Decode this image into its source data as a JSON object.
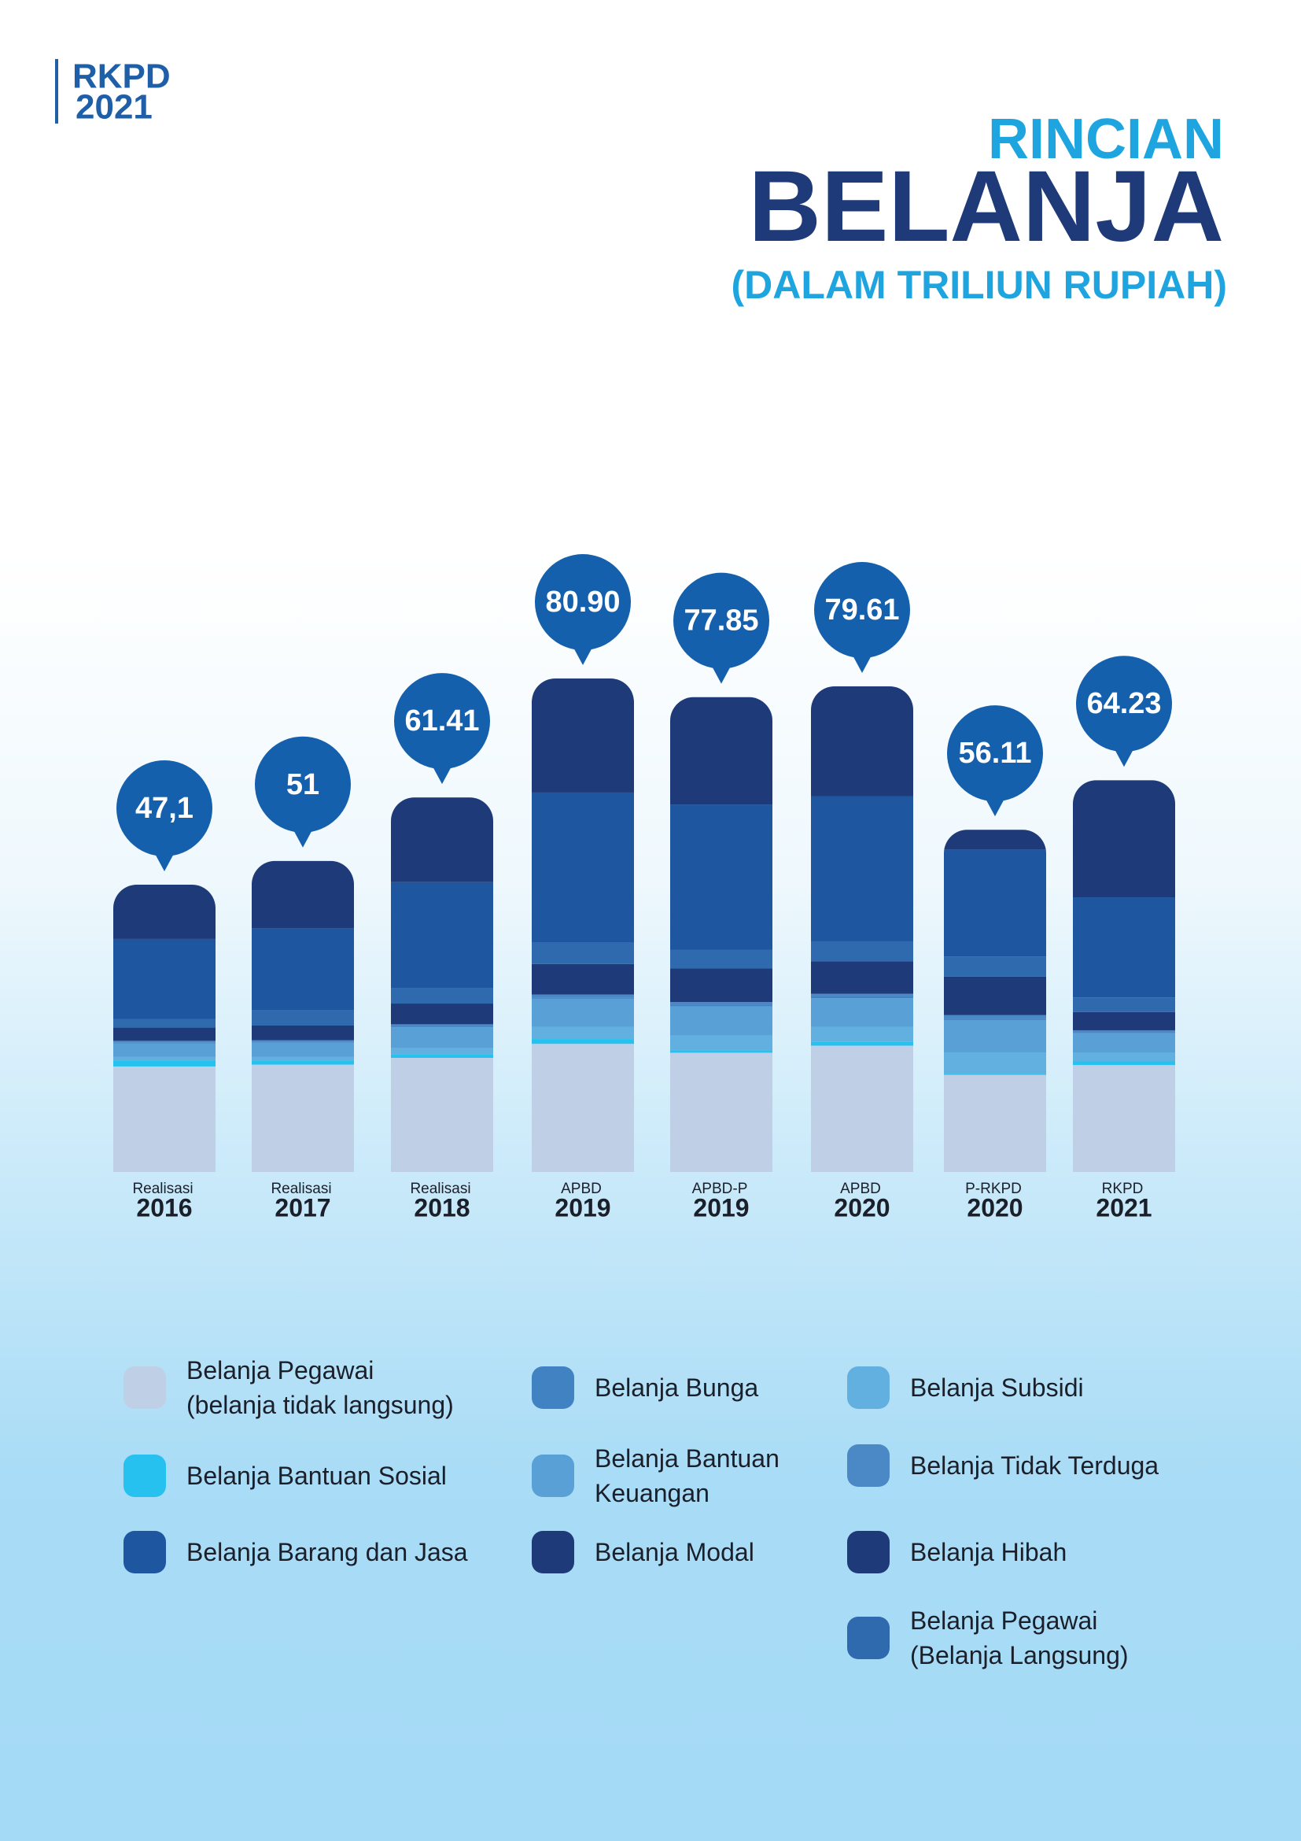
{
  "header": {
    "brand": "RKPD",
    "brand_year": "2021"
  },
  "chart_data": {
    "type": "stacked_bar",
    "title": "RINCIAN",
    "title_main": "BELANJA",
    "subtitle": "(DALAM TRILIUN RUPIAH)",
    "categories": [
      {
        "label": "Realisasi",
        "year": "2016"
      },
      {
        "label": "Realisasi",
        "year": "2017"
      },
      {
        "label": "Realisasi",
        "year": "2018"
      },
      {
        "label": "APBD",
        "year": "2019"
      },
      {
        "label": "APBD-P",
        "year": "2019"
      },
      {
        "label": "APBD",
        "year": "2020"
      },
      {
        "label": "P-RKPD",
        "year": "2020"
      },
      {
        "label": "RKPD",
        "year": "2021"
      }
    ],
    "totals": [
      47.1,
      51,
      61.41,
      80.9,
      77.85,
      79.61,
      56.11,
      64.23
    ],
    "total_labels": [
      "47,1",
      "51",
      "61.41",
      "80.90",
      "77.85",
      "79.61",
      "56.11",
      "64.23"
    ],
    "series": [
      {
        "name": "Belanja Pegawai\n(belanja tidak langsung)",
        "color": "#bfd0e6",
        "values": [
          17.3,
          17.6,
          18.71,
          21.0,
          19.55,
          20.71,
          15.91,
          17.53
        ]
      },
      {
        "name": "Belanja Bantuan Sosial",
        "color": "#27c1ef",
        "values": [
          1.0,
          0.6,
          0.6,
          0.8,
          0.4,
          0.6,
          0.2,
          0.6
        ]
      },
      {
        "name": "Belanja Subsidi",
        "color": "#62b0df",
        "values": [
          0.6,
          0.7,
          1.0,
          2.0,
          2.4,
          2.5,
          3.5,
          1.4
        ]
      },
      {
        "name": "Belanja Bantuan\nKeuangan",
        "color": "#58a0d6",
        "values": [
          2.2,
          2.3,
          3.4,
          4.6,
          4.8,
          4.7,
          5.3,
          3.2
        ]
      },
      {
        "name": "Belanja Bunga",
        "color": "#4182c3",
        "values": [
          0.1,
          0.1,
          0.1,
          0.2,
          0.2,
          0.2,
          0.2,
          0.1
        ]
      },
      {
        "name": "Belanja Tidak Terduga",
        "color": "#4a88c6",
        "values": [
          0.3,
          0.3,
          0.4,
          0.5,
          0.5,
          0.5,
          0.6,
          0.4
        ]
      },
      {
        "name": "Belanja Hibah",
        "color": "#1f3a78",
        "values": [
          2.2,
          2.4,
          3.4,
          5.0,
          5.5,
          5.3,
          6.3,
          3.0
        ]
      },
      {
        "name": "Belanja Pegawai\n(Belanja Langsung)",
        "color": "#2e6aad",
        "values": [
          1.4,
          2.5,
          2.5,
          3.5,
          3.1,
          3.3,
          3.3,
          2.4
        ]
      },
      {
        "name": "Belanja Barang dan Jasa",
        "color": "#1e56a0",
        "values": [
          13.1,
          13.4,
          17.4,
          24.6,
          23.8,
          23.8,
          17.5,
          16.4
        ]
      },
      {
        "name": "Belanja Modal",
        "color": "#1f3a78",
        "values": [
          8.9,
          11.1,
          13.9,
          18.7,
          17.6,
          18.0,
          3.3,
          19.2
        ]
      }
    ],
    "bubble_color": "#1560ad"
  }
}
